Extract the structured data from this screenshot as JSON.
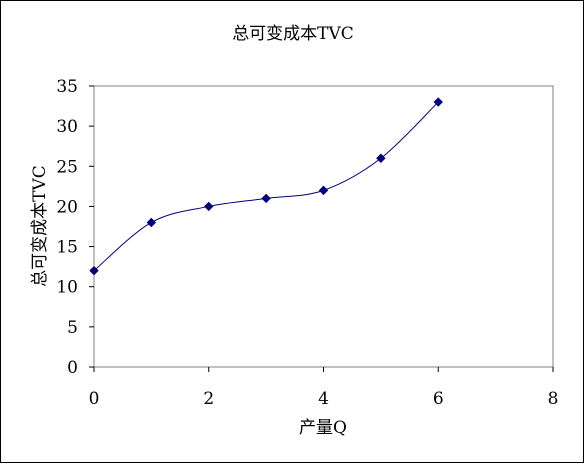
{
  "chart_data": {
    "type": "scatter",
    "title": "总可变成本TVC",
    "xlabel": "产量Q",
    "ylabel": "总可变成本TVC",
    "xlim": [
      0,
      8
    ],
    "ylim": [
      0,
      35
    ],
    "x_ticks": [
      0,
      2,
      4,
      6,
      8
    ],
    "y_ticks": [
      0,
      5,
      10,
      15,
      20,
      25,
      30,
      35
    ],
    "grid": false,
    "legend": "none",
    "smooth_line": true,
    "series": [
      {
        "x": [
          0,
          1,
          2,
          3,
          4,
          5,
          6
        ],
        "y": [
          12,
          18,
          20,
          21,
          22,
          26,
          33
        ],
        "color": "#00007f",
        "marker": "diamond"
      }
    ]
  }
}
